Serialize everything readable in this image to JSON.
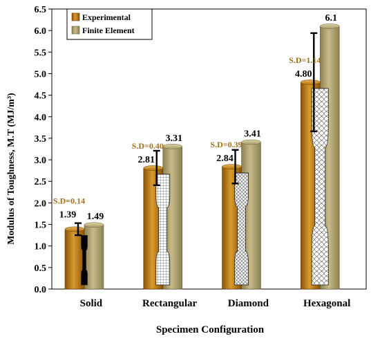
{
  "chart_data": {
    "type": "bar",
    "xlabel": "Specimen Configuration",
    "ylabel": "Modulus of Toughness, M.T (MJ/m³)",
    "ylim": [
      0,
      6.5
    ],
    "yticks": [
      "0.0",
      "0.5",
      "1.0",
      "1.5",
      "2.0",
      "2.5",
      "3.0",
      "3.5",
      "4.0",
      "4.5",
      "5.0",
      "5.5",
      "6.0",
      "6.5"
    ],
    "grid": false,
    "legend_position": "top-left",
    "categories": [
      "Solid",
      "Rectangular",
      "Diamond",
      "Hexagonal"
    ],
    "series": [
      {
        "name": "Experimental",
        "color": "#b8760f",
        "values": [
          1.39,
          2.81,
          2.84,
          4.8
        ],
        "labels": [
          "1.39",
          "2.81",
          "2.84",
          "4.80"
        ]
      },
      {
        "name": "Finite Element",
        "color": "#a89c6a",
        "values": [
          1.49,
          3.31,
          3.41,
          6.1
        ],
        "labels": [
          "1.49",
          "3.31",
          "3.41",
          "6.1"
        ]
      }
    ],
    "error_sd": [
      0.14,
      0.4,
      0.39,
      1.14
    ],
    "sd_labels": [
      "S.D=0.14",
      "S.D=0.40",
      "S.D=0.39",
      "S.D=1.14"
    ],
    "sd_label_color": "#a0701a",
    "specimen_insets": [
      "solid-dogbone",
      "rectangular-mesh",
      "diamond-mesh",
      "hexagonal-mesh"
    ]
  }
}
